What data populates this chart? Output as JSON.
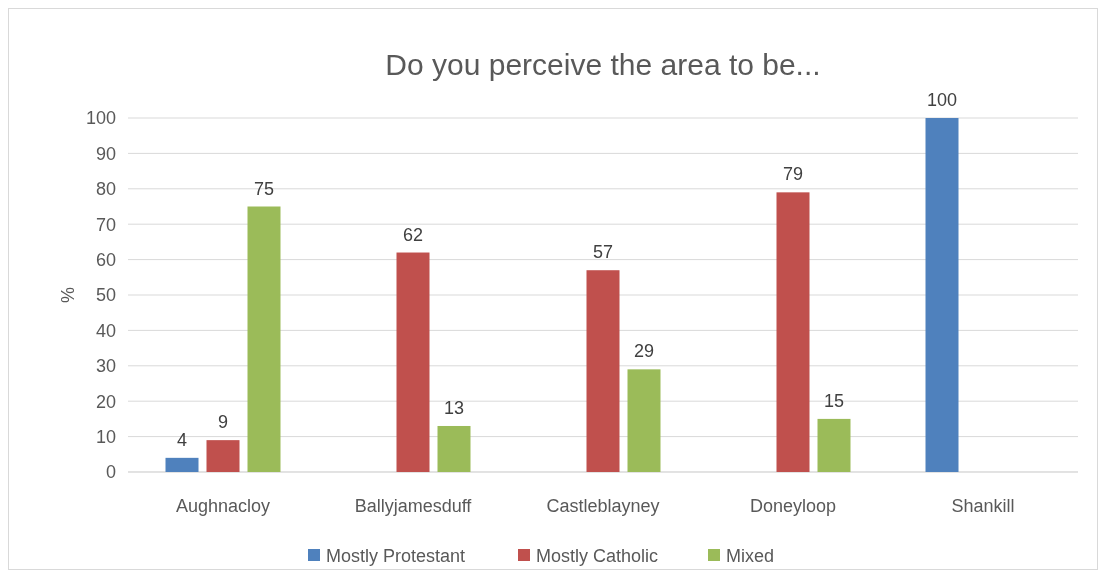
{
  "chart_data": {
    "type": "bar",
    "title": "Do you perceive the area to be...",
    "ylabel": "%",
    "categories": [
      "Aughnacloy",
      "Ballyjamesduff",
      "Castleblayney",
      "Doneyloop",
      "Shankill"
    ],
    "series": [
      {
        "name": "Mostly Protestant",
        "color": "#4f81bd",
        "values": [
          4,
          null,
          null,
          null,
          100
        ]
      },
      {
        "name": "Mostly Catholic",
        "color": "#c0504d",
        "values": [
          9,
          62,
          57,
          79,
          null
        ]
      },
      {
        "name": "Mixed",
        "color": "#9bbb59",
        "values": [
          75,
          13,
          29,
          15,
          null
        ]
      }
    ],
    "ylim": [
      0,
      100
    ],
    "yticks": [
      0,
      10,
      20,
      30,
      40,
      50,
      60,
      70,
      80,
      90,
      100
    ],
    "grid": "y",
    "legend": "bottom",
    "data_labels": true
  }
}
